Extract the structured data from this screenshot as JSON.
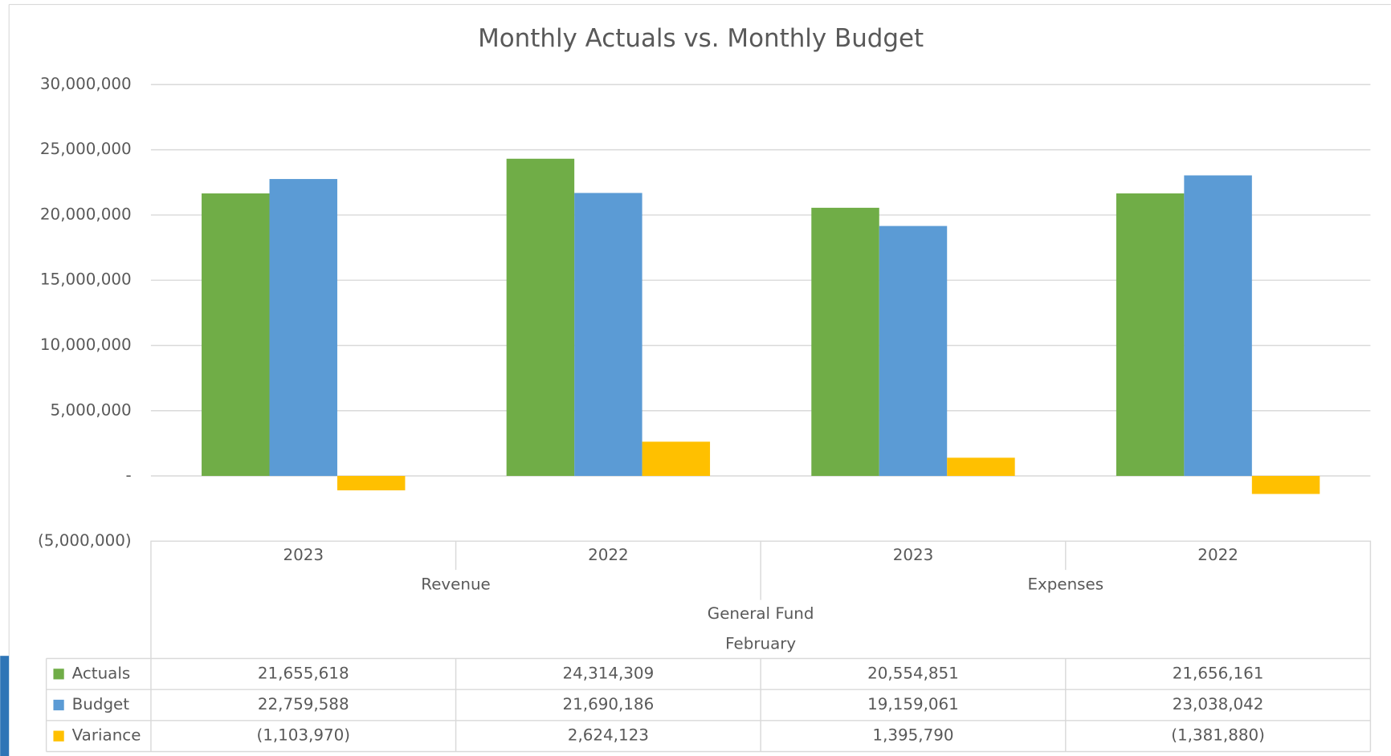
{
  "chart_data": {
    "type": "bar",
    "title": "Monthly Actuals vs. Monthly Budget",
    "categories": [
      "2023",
      "2022",
      "2023",
      "2022"
    ],
    "groups": [
      "Revenue",
      "Expenses"
    ],
    "fund": "General Fund",
    "month": "February",
    "series": [
      {
        "name": "Actuals",
        "color": "#70ad47",
        "values": [
          21655618,
          24314309,
          20554851,
          21656161
        ],
        "value_labels": [
          "21,655,618",
          "24,314,309",
          "20,554,851",
          "21,656,161"
        ]
      },
      {
        "name": "Budget",
        "color": "#5b9bd5",
        "values": [
          22759588,
          21690186,
          19159061,
          23038042
        ],
        "value_labels": [
          "22,759,588",
          "21,690,186",
          "19,159,061",
          "23,038,042"
        ]
      },
      {
        "name": "Variance",
        "color": "#ffc000",
        "values": [
          -1103970,
          2624123,
          1395790,
          -1381880
        ],
        "value_labels": [
          "(1,103,970)",
          "2,624,123",
          "1,395,790",
          "(1,381,880)"
        ]
      }
    ],
    "ylim": [
      -5000000,
      30000000
    ],
    "yticks": [
      {
        "value": -5000000,
        "label": "(5,000,000)"
      },
      {
        "value": 0,
        "label": "-"
      },
      {
        "value": 5000000,
        "label": "5,000,000"
      },
      {
        "value": 10000000,
        "label": "10,000,000"
      },
      {
        "value": 15000000,
        "label": "15,000,000"
      },
      {
        "value": 20000000,
        "label": "20,000,000"
      },
      {
        "value": 25000000,
        "label": "25,000,000"
      },
      {
        "value": 30000000,
        "label": "30,000,000"
      }
    ],
    "grid": true
  }
}
